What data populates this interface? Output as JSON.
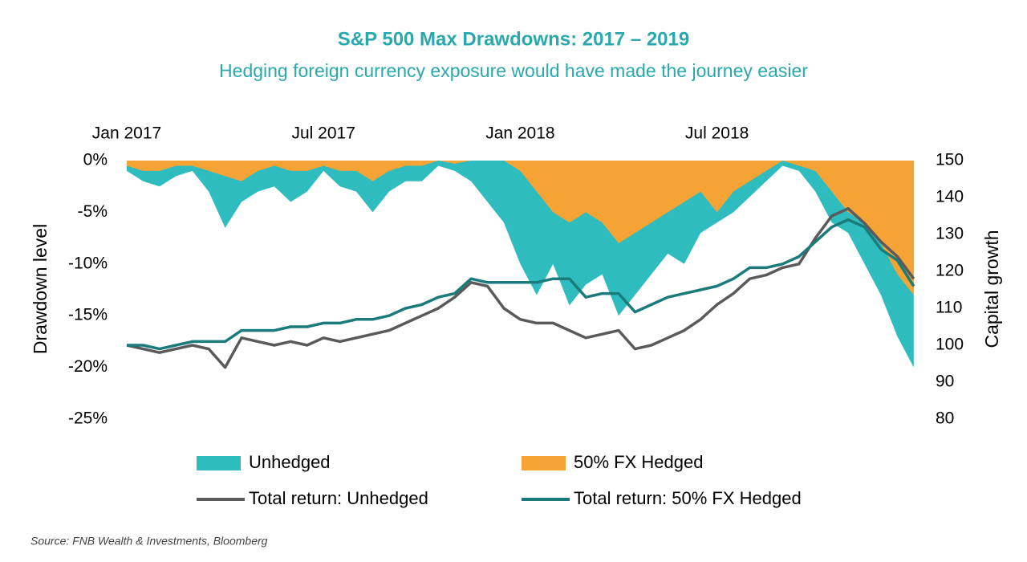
{
  "chart_data": {
    "type": "line",
    "title": "S&P 500 Max Drawdowns: 2017 – 2019",
    "subtitle": "Hedging foreign currency exposure would have made the journey easier",
    "y_label": "Drawdown level",
    "y2_label": "Capital growth",
    "source": "Source: FNB Wealth & Investments, Bloomberg",
    "x": [
      0,
      0.5,
      1,
      1.5,
      2,
      2.5,
      3,
      3.5,
      4,
      4.5,
      5,
      5.5,
      6,
      6.5,
      7,
      7.5,
      8,
      8.5,
      9,
      9.5,
      10,
      10.5,
      11,
      11.5,
      12,
      12.5,
      13,
      13.5,
      14,
      14.5,
      15,
      15.5,
      16,
      16.5,
      17,
      17.5,
      18,
      18.5,
      19,
      19.5,
      20,
      20.5,
      21,
      21.5,
      22,
      22.5,
      23,
      23.5,
      24
    ],
    "xlim": [
      0,
      24.2
    ],
    "xticks": [
      {
        "value": 0,
        "label": "Jan 2017"
      },
      {
        "value": 6,
        "label": "Jul 2017"
      },
      {
        "value": 12,
        "label": "Jan 2018"
      },
      {
        "value": 18,
        "label": "Jul 2018"
      }
    ],
    "ylim": [
      -25,
      0
    ],
    "yticks": [
      {
        "value": -25,
        "label": "-25%"
      },
      {
        "value": -20,
        "label": "-20%"
      },
      {
        "value": -15,
        "label": "-15%"
      },
      {
        "value": -10,
        "label": "-10%"
      },
      {
        "value": -5,
        "label": "-5%"
      },
      {
        "value": 0,
        "label": "0%"
      }
    ],
    "y2lim": [
      80,
      150
    ],
    "y2ticks": [
      80,
      90,
      100,
      110,
      120,
      130,
      140,
      150
    ],
    "series": [
      {
        "name": "Unhedged",
        "type": "area",
        "color": "#2fbcbf",
        "values": [
          -1,
          -2,
          -2.5,
          -1.5,
          -1,
          -3,
          -6.5,
          -4,
          -3,
          -2.5,
          -4,
          -3,
          -1,
          -2.5,
          -3,
          -5,
          -3,
          -2,
          -2,
          -0.5,
          -1,
          -2,
          -4,
          -6,
          -10,
          -13,
          -10,
          -14,
          -12,
          -11,
          -15,
          -13,
          -11,
          -9,
          -10,
          -7,
          -6,
          -5,
          -3.5,
          -2,
          -0.5,
          -1,
          -3,
          -6,
          -7,
          -10,
          -13,
          -17,
          -20
        ]
      },
      {
        "name": "50% FX Hedged",
        "type": "area",
        "color": "#f6a336",
        "values": [
          -0.5,
          -1,
          -1,
          -0.5,
          -0.5,
          -1,
          -1.5,
          -2,
          -1,
          -0.5,
          -1,
          -1,
          -0.5,
          -1,
          -1,
          -2,
          -1,
          -0.5,
          -0.5,
          0,
          -0.3,
          0,
          0,
          0,
          -1,
          -3,
          -5,
          -6,
          -5,
          -6,
          -8,
          -7,
          -6,
          -5,
          -4,
          -3,
          -5,
          -3,
          -2,
          -1,
          0,
          -0.5,
          -1,
          -3,
          -5,
          -6,
          -8,
          -11,
          -13
        ]
      },
      {
        "name": "Total return: Unhedged",
        "type": "line",
        "axis": "y2",
        "color": "#5a5a5a",
        "values": [
          100,
          99,
          98,
          99,
          100,
          99,
          94,
          102,
          101,
          100,
          101,
          100,
          102,
          101,
          102,
          103,
          104,
          106,
          108,
          110,
          113,
          117,
          116,
          110,
          107,
          106,
          106,
          104,
          102,
          103,
          104,
          99,
          100,
          102,
          104,
          107,
          111,
          114,
          118,
          119,
          121,
          122,
          129,
          135,
          137,
          133,
          128,
          124,
          118
        ]
      },
      {
        "name": "Total return: 50% FX Hedged",
        "type": "line",
        "axis": "y2",
        "color": "#1b7b7b",
        "values": [
          100,
          100,
          99,
          100,
          101,
          101,
          101,
          104,
          104,
          104,
          105,
          105,
          106,
          106,
          107,
          107,
          108,
          110,
          111,
          113,
          114,
          118,
          117,
          117,
          117,
          117,
          118,
          118,
          113,
          114,
          114,
          109,
          111,
          113,
          114,
          115,
          116,
          118,
          121,
          121,
          122,
          124,
          128,
          132,
          134,
          132,
          126,
          123,
          116
        ]
      }
    ]
  }
}
